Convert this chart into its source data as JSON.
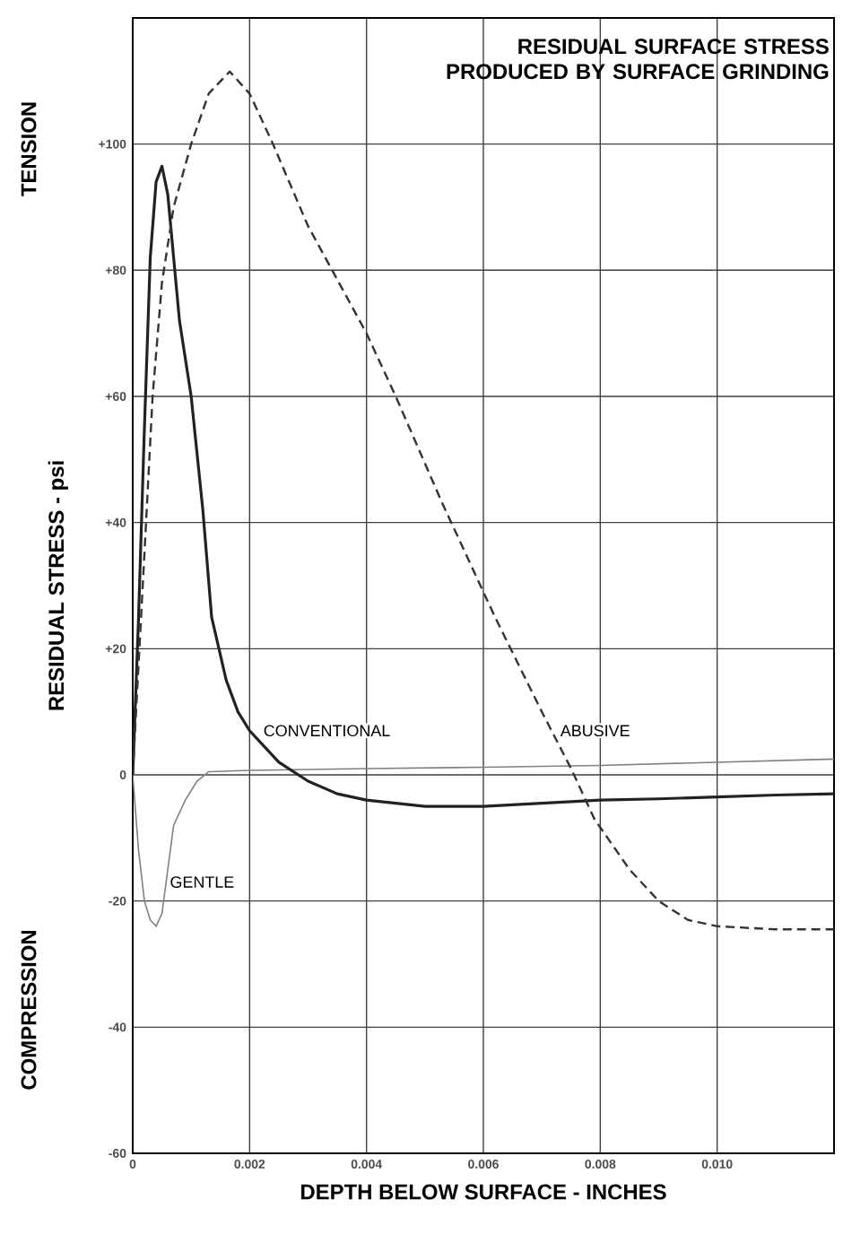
{
  "chart_data": {
    "type": "line",
    "title": "RESIDUAL SURFACE STRESS PRODUCED BY SURFACE GRINDING",
    "xlabel": "DEPTH BELOW SURFACE - INCHES",
    "ylabel": "RESIDUAL STRESS - psi",
    "annotations": [
      "TENSION",
      "COMPRESSION"
    ],
    "xlim": [
      0,
      0.012
    ],
    "ylim": [
      -60,
      120
    ],
    "xticks": [
      0,
      0.002,
      0.004,
      0.006,
      0.008,
      {
        "value": 0.01,
        "label": "0.010"
      }
    ],
    "yticks": [
      {
        "value": -60,
        "label": "-60"
      },
      {
        "value": -40,
        "label": "-40"
      },
      {
        "value": -20,
        "label": "-20"
      },
      {
        "value": 0,
        "label": "0"
      },
      {
        "value": 20,
        "label": "+20"
      },
      {
        "value": 40,
        "label": "+40"
      },
      {
        "value": 60,
        "label": "+60"
      },
      {
        "value": 80,
        "label": "+80"
      },
      {
        "value": 100,
        "label": "+100"
      }
    ],
    "grid": true,
    "legend": false,
    "marker": "none",
    "series": [
      {
        "name": "GENTLE",
        "color": "#808080",
        "line_style": "solid",
        "x": [
          0,
          0.0001,
          0.0002,
          0.0003,
          0.0004,
          0.0005,
          0.0006,
          0.0007,
          0.0009,
          0.0011,
          0.0013,
          0.002,
          0.004,
          0.006,
          0.008,
          0.01,
          0.012
        ],
        "values": [
          0,
          -12,
          -20,
          -23,
          -24,
          -22,
          -15,
          -8,
          -4,
          -1,
          0.5,
          0.7,
          1,
          1.2,
          1.5,
          2,
          2.5
        ]
      },
      {
        "name": "CONVENTIONAL",
        "color": "#222222",
        "line_style": "solid",
        "x": [
          0,
          0.0001,
          0.0002,
          0.0003,
          0.0004,
          0.0005,
          0.0006,
          0.0007,
          0.0008,
          0.0009,
          0.001,
          0.0012,
          0.00135,
          0.0016,
          0.0018,
          0.002,
          0.0025,
          0.003,
          0.0035,
          0.004,
          0.005,
          0.006,
          0.007,
          0.008,
          0.009,
          0.01,
          0.011,
          0.012
        ],
        "values": [
          0,
          25,
          55,
          82,
          94,
          96.5,
          92,
          82,
          72,
          66,
          60,
          42,
          25,
          15,
          10,
          7,
          2,
          -1,
          -3,
          -4,
          -5,
          -5,
          -4.5,
          -4,
          -3.8,
          -3.5,
          -3.2,
          -3
        ]
      },
      {
        "name": "ABUSIVE",
        "color": "#333333",
        "line_style": "dashed",
        "x": [
          0,
          0.0002,
          0.00034,
          0.0005,
          0.0007,
          0.001,
          0.0013,
          0.00166,
          0.002,
          0.0024,
          0.003,
          0.004,
          0.0045,
          0.0053,
          0.0062,
          0.007,
          0.0075,
          0.0079,
          0.0085,
          0.009,
          0.0095,
          0.01,
          0.011,
          0.012
        ],
        "values": [
          0,
          35,
          60,
          78,
          90,
          100,
          108,
          111.5,
          108,
          100,
          87,
          70,
          60,
          43,
          25,
          10,
          1,
          -7,
          -15,
          -20,
          -23,
          -24,
          -24.5,
          -24.5
        ]
      }
    ]
  }
}
